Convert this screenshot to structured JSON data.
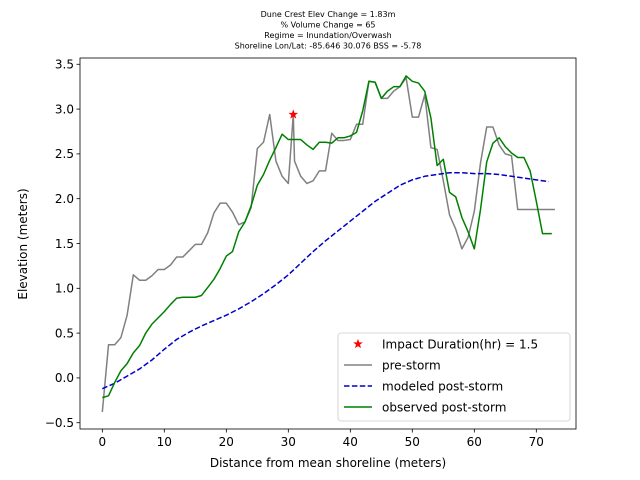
{
  "chart_data": {
    "type": "line",
    "title_lines": [
      "Dune Crest Elev Change = 1.83m",
      "% Volume Change = 65",
      "Regime = Inundation/Overwash",
      "Shoreline Lon/Lat: -85.646 30.076   BSS = -5.78"
    ],
    "xlabel": "Distance from mean shoreline (meters)",
    "ylabel": "Elevation (meters)",
    "xlim": [
      -3.6,
      76.4
    ],
    "ylim": [
      -0.57,
      3.57
    ],
    "xticks": [
      0,
      10,
      20,
      30,
      40,
      50,
      60,
      70
    ],
    "yticks": [
      -0.5,
      0.0,
      0.5,
      1.0,
      1.5,
      2.0,
      2.5,
      3.0,
      3.5
    ],
    "ytick_labels": [
      "−0.5",
      "0.0",
      "0.5",
      "1.0",
      "1.5",
      "2.0",
      "2.5",
      "3.0",
      "3.5"
    ],
    "grid": false,
    "legend_position": "lower-right",
    "impact_marker": {
      "label": "Impact Duration(hr) = 1.5",
      "x": 30.8,
      "y": 2.94,
      "color": "#ff0000"
    },
    "series": [
      {
        "name": "pre-storm",
        "style": "solid",
        "color": "#808080",
        "x": [
          0,
          1,
          2,
          3,
          4,
          5,
          6,
          7,
          8,
          9,
          10,
          11,
          12,
          13,
          14,
          15,
          16,
          17,
          18,
          19,
          20,
          21,
          22,
          23,
          24,
          25,
          26,
          27,
          28,
          29,
          30,
          30.8,
          31,
          32,
          33,
          34,
          35,
          36,
          37,
          38,
          39,
          40,
          41,
          42,
          43,
          44,
          45,
          46,
          47,
          48,
          49,
          50,
          51,
          52,
          53,
          54,
          55,
          56,
          57,
          58,
          59,
          60,
          61,
          62,
          63,
          64,
          65,
          66,
          67,
          68,
          69,
          70,
          71,
          72,
          73
        ],
        "y": [
          -0.38,
          0.37,
          0.37,
          0.45,
          0.7,
          1.15,
          1.09,
          1.09,
          1.14,
          1.21,
          1.21,
          1.26,
          1.35,
          1.35,
          1.42,
          1.49,
          1.49,
          1.62,
          1.84,
          1.95,
          1.95,
          1.85,
          1.71,
          1.74,
          1.9,
          2.56,
          2.63,
          2.94,
          2.42,
          2.25,
          2.17,
          2.94,
          2.42,
          2.25,
          2.17,
          2.2,
          2.31,
          2.31,
          2.73,
          2.65,
          2.65,
          2.66,
          2.83,
          2.83,
          3.31,
          3.3,
          3.12,
          3.12,
          3.2,
          3.25,
          3.35,
          2.91,
          2.91,
          3.16,
          2.57,
          2.55,
          2.2,
          1.82,
          1.66,
          1.44,
          1.57,
          1.86,
          2.4,
          2.8,
          2.8,
          2.6,
          2.5,
          2.48,
          1.88,
          1.88,
          1.88,
          1.88,
          1.88,
          1.88,
          1.88
        ]
      },
      {
        "name": "modeled post-storm",
        "style": "dashed",
        "color": "#0000cc",
        "x": [
          0,
          2,
          4,
          6,
          8,
          10,
          12,
          14,
          16,
          18,
          20,
          22,
          24,
          26,
          28,
          30,
          32,
          34,
          36,
          38,
          40,
          42,
          44,
          46,
          48,
          50,
          52,
          54,
          56,
          58,
          60,
          62,
          64,
          66,
          68,
          70,
          72
        ],
        "y": [
          -0.12,
          -0.06,
          0.02,
          0.1,
          0.2,
          0.32,
          0.43,
          0.51,
          0.58,
          0.64,
          0.7,
          0.77,
          0.85,
          0.94,
          1.04,
          1.15,
          1.28,
          1.41,
          1.53,
          1.64,
          1.75,
          1.86,
          1.97,
          2.06,
          2.15,
          2.21,
          2.25,
          2.27,
          2.29,
          2.29,
          2.28,
          2.28,
          2.27,
          2.25,
          2.23,
          2.21,
          2.19
        ]
      },
      {
        "name": "observed post-storm",
        "style": "solid",
        "color": "#008000",
        "x": [
          0,
          1,
          2,
          3,
          4,
          5,
          6,
          7,
          8,
          9,
          10,
          11,
          12,
          13,
          14,
          15,
          16,
          17,
          18,
          19,
          20,
          21,
          22,
          23,
          24,
          25,
          26,
          27,
          28,
          29,
          30,
          31,
          32,
          33,
          34,
          35,
          36,
          37,
          38,
          39,
          40,
          41,
          42,
          43,
          44,
          45,
          46,
          47,
          48,
          49,
          50,
          51,
          52,
          53,
          54,
          55,
          56,
          57,
          58,
          59,
          60,
          61,
          62,
          63,
          64,
          65,
          66,
          67,
          68,
          69,
          70,
          71,
          72,
          72.5
        ],
        "y": [
          -0.22,
          -0.2,
          -0.05,
          0.08,
          0.16,
          0.28,
          0.36,
          0.5,
          0.6,
          0.67,
          0.74,
          0.82,
          0.89,
          0.9,
          0.9,
          0.9,
          0.92,
          1.01,
          1.1,
          1.22,
          1.36,
          1.41,
          1.63,
          1.74,
          1.92,
          2.15,
          2.27,
          2.43,
          2.57,
          2.72,
          2.66,
          2.66,
          2.66,
          2.6,
          2.55,
          2.63,
          2.63,
          2.62,
          2.68,
          2.68,
          2.7,
          2.74,
          2.98,
          3.31,
          3.3,
          3.12,
          3.2,
          3.25,
          3.25,
          3.37,
          3.31,
          3.29,
          3.2,
          2.9,
          2.37,
          2.44,
          2.07,
          2.02,
          1.79,
          1.63,
          1.44,
          1.88,
          2.41,
          2.62,
          2.68,
          2.58,
          2.51,
          2.46,
          2.46,
          2.31,
          1.97,
          1.61,
          1.61,
          1.61
        ]
      }
    ]
  }
}
